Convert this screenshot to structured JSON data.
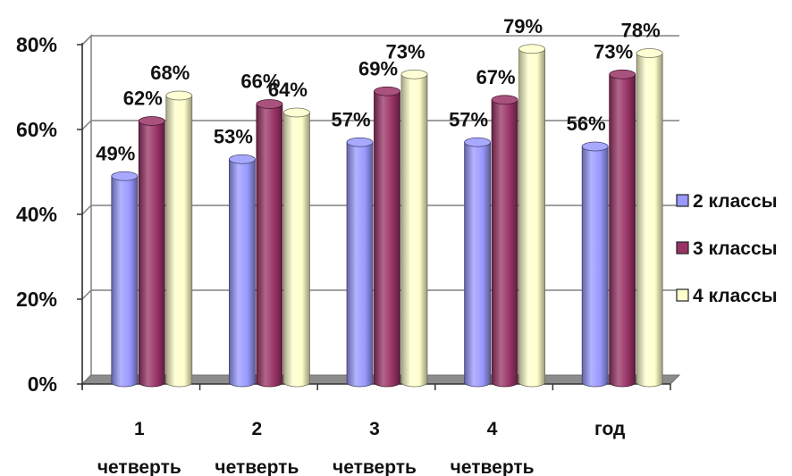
{
  "chart_data": {
    "type": "bar",
    "title": "",
    "xlabel": "",
    "ylabel": "",
    "ylim": [
      0,
      80
    ],
    "y_tick_labels": [
      "0%",
      "20%",
      "40%",
      "60%",
      "80%"
    ],
    "y_ticks": [
      0,
      20,
      40,
      60,
      80
    ],
    "grid": true,
    "legend_position": "right",
    "categories": [
      [
        "1",
        "четверть"
      ],
      [
        "2",
        "четверть"
      ],
      [
        "3",
        "четверть"
      ],
      [
        "4",
        "четверть"
      ],
      [
        "год"
      ]
    ],
    "series": [
      {
        "name": "2 классы",
        "values": [
          49,
          53,
          57,
          57,
          56
        ],
        "labels": [
          "49%",
          "53%",
          "57%",
          "57%",
          "56%"
        ],
        "color": "#9999ff"
      },
      {
        "name": "3 классы",
        "values": [
          62,
          66,
          69,
          67,
          73
        ],
        "labels": [
          "62%",
          "66%",
          "69%",
          "67%",
          "73%"
        ],
        "color": "#993366"
      },
      {
        "name": "4 классы",
        "values": [
          68,
          64,
          73,
          79,
          78
        ],
        "labels": [
          "68%",
          "64%",
          "73%",
          "79%",
          "78%"
        ],
        "color": "#ffffcc"
      }
    ]
  }
}
